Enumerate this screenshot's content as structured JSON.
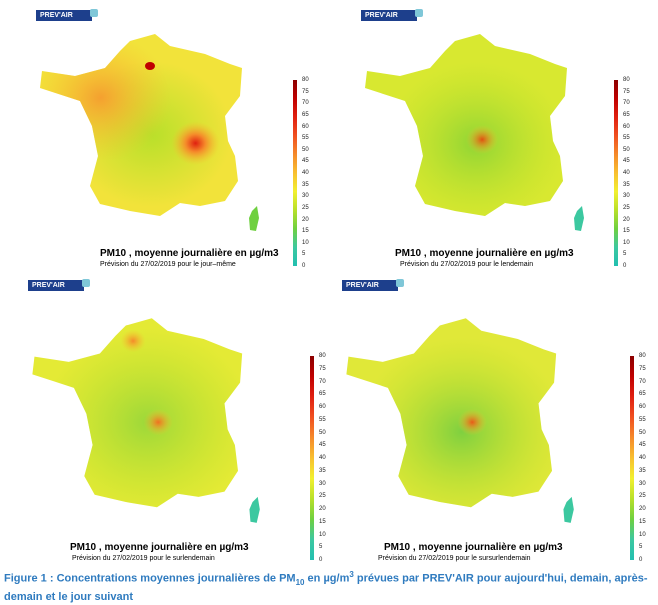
{
  "brand": "PREV'AIR",
  "colorscale": {
    "ticks": [
      "80",
      "75",
      "70",
      "65",
      "60",
      "55",
      "50",
      "45",
      "40",
      "35",
      "30",
      "25",
      "20",
      "15",
      "10",
      "5",
      "0"
    ],
    "colors": [
      "#8b0000",
      "#c00000",
      "#e02010",
      "#f05020",
      "#f58a2a",
      "#f8c030",
      "#f2f030",
      "#b8e02a",
      "#6fd040",
      "#3cc8a0",
      "#22bfb0"
    ]
  },
  "panels": [
    {
      "title": "PM10 , moyenne journalière en µg/m3",
      "subtitle": "Prévision du 27/02/2019 pour le jour–même"
    },
    {
      "title": "PM10 , moyenne journalière en µg/m3",
      "subtitle": "Prévision du 27/02/2019 pour le lendemain"
    },
    {
      "title": "PM10 , moyenne journalière en µg/m3",
      "subtitle": "Prévision du 27/02/2019 pour le surlendemain"
    },
    {
      "title": "PM10 , moyenne journalière en µg/m3",
      "subtitle": "Prévision du 27/02/2019 pour le sursurlendemain"
    }
  ],
  "figure_caption": {
    "label": "Figure 1 :",
    "before_sub": "Concentrations moyennes journalières de PM",
    "sub": "10",
    "mid": " en µg/m",
    "sup": "3",
    "after": " prévues par PREV'AIR pour aujourd'hui, demain, après-demain et le jour suivant"
  }
}
